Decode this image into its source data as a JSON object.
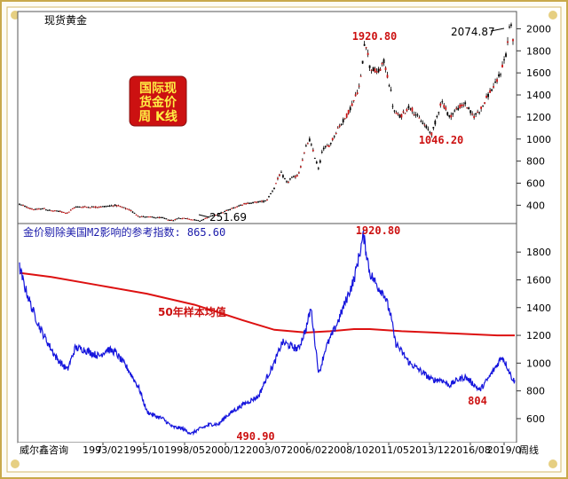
{
  "chart_data": [
    {
      "type": "line",
      "subtype": "candlestick",
      "title": "现货黄金",
      "badge_lines": [
        "国际现",
        "货金价",
        "周 K线"
      ],
      "y_ticks": [
        400,
        600,
        800,
        1000,
        1200,
        1400,
        1600,
        1800,
        2000
      ],
      "ylim": [
        250,
        2100
      ],
      "series": [
        {
          "x": [
            1990.0,
            1990.5,
            1991.0,
            1991.5,
            1992.0,
            1992.5,
            1993.0,
            1993.5,
            1994.0,
            1995.0,
            1996.0,
            1996.5,
            1997.0,
            1997.5,
            1998.0,
            1998.5,
            1999.0,
            1999.6,
            2000.0,
            2000.5,
            2001.0,
            2001.3,
            2002.0,
            2002.5,
            2003.0,
            2004.0,
            2005.0,
            2005.5,
            2006.0,
            2006.4,
            2006.8,
            2007.0,
            2007.5,
            2008.0,
            2008.2,
            2008.8,
            2009.0,
            2009.5,
            2010.0,
            2010.5,
            2011.0,
            2011.4,
            2011.7,
            2011.9,
            2012.0,
            2012.5,
            2012.9,
            2013.3,
            2013.5,
            2013.9,
            2014.5,
            2015.0,
            2015.9,
            2016.5,
            2017.0,
            2017.5,
            2018.0,
            2018.5,
            2019.0,
            2019.5,
            2019.9,
            2020.2,
            2020.6,
            2020.8,
            2021.0,
            2021.1
          ],
          "values": [
            410,
            380,
            360,
            370,
            350,
            345,
            330,
            385,
            385,
            385,
            400,
            380,
            350,
            300,
            295,
            290,
            285,
            260,
            285,
            280,
            268,
            258,
            300,
            320,
            350,
            410,
            430,
            440,
            560,
            700,
            600,
            640,
            670,
            930,
            1000,
            720,
            900,
            950,
            1100,
            1200,
            1350,
            1500,
            1920.8,
            1750,
            1650,
            1600,
            1700,
            1450,
            1250,
            1200,
            1300,
            1200,
            1046.2,
            1350,
            1200,
            1280,
            1320,
            1200,
            1280,
            1420,
            1500,
            1600,
            1800,
            2074.87,
            1900,
            1840
          ]
        }
      ],
      "annotations": [
        "1920.80",
        "1046.20",
        "2074.87",
        "251.69"
      ]
    },
    {
      "type": "line",
      "title": "金价剔除美国M2影响的参考指数: 865.60",
      "y_ticks": [
        600,
        800,
        1000,
        1200,
        1400,
        1600,
        1800
      ],
      "ylim": [
        440,
        1980
      ],
      "x_ticks": [
        "1993/02",
        "1995/10",
        "1998/05",
        "2000/12",
        "2003/07",
        "2006/02",
        "2008/10",
        "2011/05",
        "2013/12",
        "2016/08",
        "2019/0"
      ],
      "series": [
        {
          "x": [
            1990.0,
            1990.3,
            1990.8,
            1991.3,
            1991.8,
            1992.3,
            1993.0,
            1993.5,
            1994.0,
            1995.0,
            1995.5,
            1996.0,
            1996.8,
            1997.5,
            1998.0,
            1998.5,
            1999.0,
            1999.6,
            2000.2,
            2000.8,
            2001.2,
            2002.0,
            2002.5,
            2003.0,
            2004.0,
            2005.0,
            2005.5,
            2006.0,
            2006.5,
            2006.9,
            2007.5,
            2008.0,
            2008.3,
            2008.8,
            2009.2,
            2010.0,
            2010.5,
            2011.0,
            2011.6,
            2012.0,
            2012.5,
            2012.9,
            2013.3,
            2013.6,
            2014.0,
            2014.5,
            2015.0,
            2015.9,
            2016.5,
            2017.0,
            2017.5,
            2018.0,
            2018.5,
            2018.9,
            2019.5,
            2020.0,
            2020.3,
            2020.6,
            2020.9,
            2021.1
          ],
          "values": [
            1690,
            1560,
            1390,
            1250,
            1140,
            1040,
            950,
            1110,
            1100,
            1050,
            1100,
            1080,
            960,
            820,
            650,
            620,
            600,
            540,
            530,
            490.9,
            520,
            560,
            560,
            620,
            700,
            760,
            890,
            1000,
            1150,
            1130,
            1100,
            1250,
            1400,
            920,
            1100,
            1300,
            1450,
            1600,
            1920.8,
            1650,
            1550,
            1500,
            1350,
            1150,
            1080,
            1000,
            960,
            880,
            880,
            840,
            880,
            900,
            850,
            804,
            900,
            990,
            1050,
            980,
            900,
            865.6
          ]
        },
        {
          "name": "50年样本均值",
          "x": [
            1990.0,
            1992.0,
            1995.0,
            1998.0,
            2001.0,
            2004.0,
            2006.0,
            2008.0,
            2009.5,
            2011.0,
            2012.0,
            2014.0,
            2016.0,
            2018.0,
            2020.0,
            2021.1
          ],
          "values": [
            1650,
            1620,
            1560,
            1500,
            1420,
            1310,
            1240,
            1220,
            1230,
            1245,
            1245,
            1230,
            1220,
            1210,
            1200,
            1200
          ]
        }
      ],
      "annotations": [
        "1920.80",
        "490.90",
        "804"
      ]
    }
  ],
  "footer": {
    "left": "威尔鑫咨询",
    "right": "周线",
    "hidden_left_label": "7"
  }
}
